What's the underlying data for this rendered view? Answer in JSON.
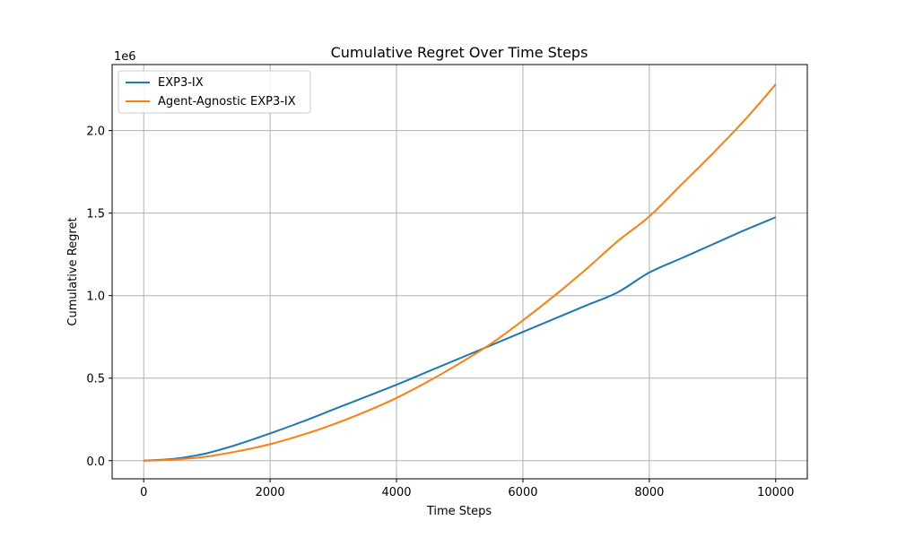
{
  "chart_data": {
    "type": "line",
    "title": "Cumulative Regret Over Time Steps",
    "xlabel": "Time Steps",
    "ylabel": "Cumulative Regret",
    "y_offset_text": "1e6",
    "xlim": [
      -500,
      10500
    ],
    "ylim": [
      -0.11,
      2.4
    ],
    "x_ticks": [
      0,
      2000,
      4000,
      6000,
      8000,
      10000
    ],
    "x_tick_labels": [
      "0",
      "2000",
      "4000",
      "6000",
      "8000",
      "10000"
    ],
    "y_ticks": [
      0.0,
      0.5,
      1.0,
      1.5,
      2.0
    ],
    "y_tick_labels": [
      "0.0",
      "0.5",
      "1.0",
      "1.5",
      "2.0"
    ],
    "grid": true,
    "legend_position": "top-left",
    "x": [
      0,
      500,
      1000,
      1500,
      2000,
      2500,
      3000,
      3500,
      4000,
      4500,
      5000,
      5500,
      6000,
      6500,
      7000,
      7500,
      8000,
      8500,
      9000,
      9500,
      10000
    ],
    "series": [
      {
        "name": "EXP3-IX",
        "color": "#1f77b4",
        "values": [
          0.0,
          0.012,
          0.045,
          0.1,
          0.165,
          0.235,
          0.31,
          0.385,
          0.46,
          0.54,
          0.62,
          0.7,
          0.78,
          0.86,
          0.94,
          1.02,
          1.14,
          1.225,
          1.31,
          1.395,
          1.475
        ]
      },
      {
        "name": "Agent-Agnostic EXP3-IX",
        "color": "#ff7f0e",
        "values": [
          0.0,
          0.007,
          0.025,
          0.058,
          0.1,
          0.155,
          0.22,
          0.295,
          0.38,
          0.48,
          0.59,
          0.71,
          0.85,
          1.0,
          1.16,
          1.33,
          1.48,
          1.67,
          1.86,
          2.06,
          2.28
        ]
      }
    ]
  }
}
